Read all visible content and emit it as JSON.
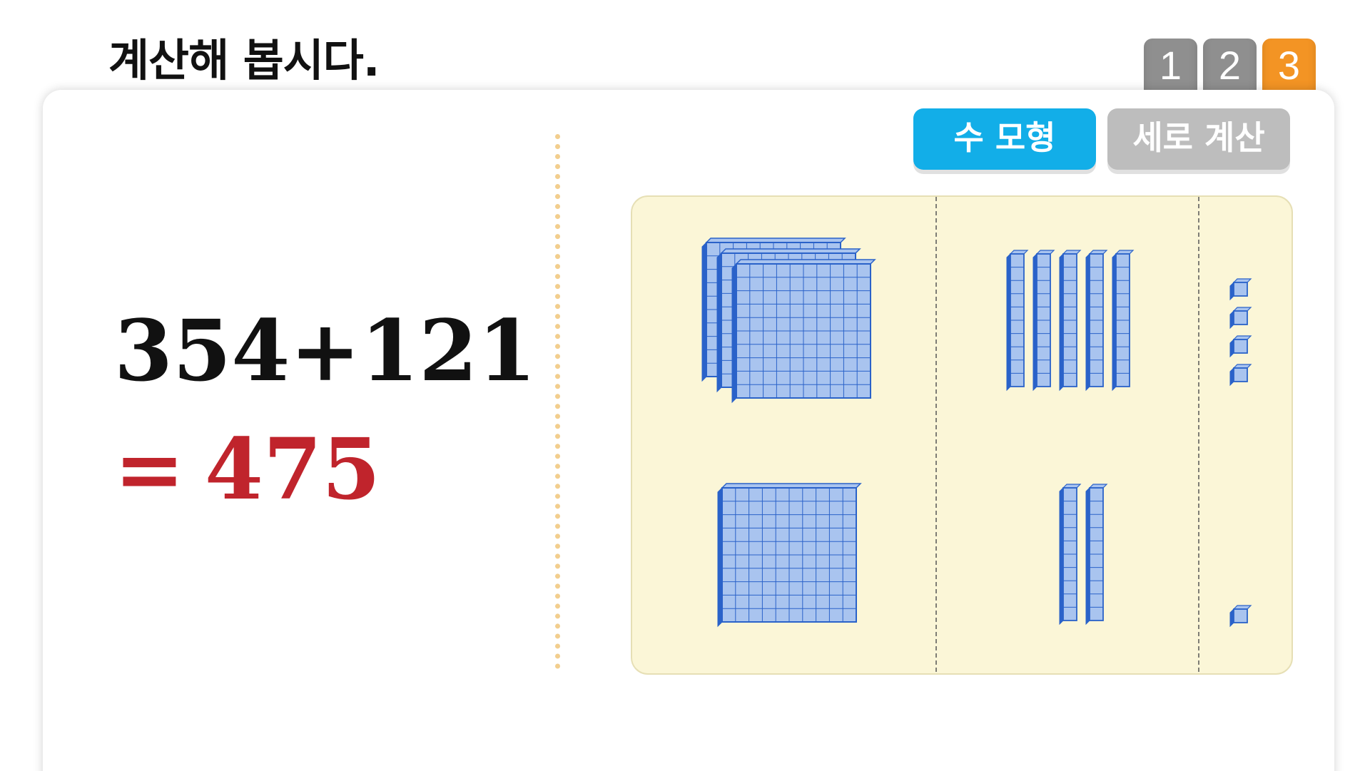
{
  "header": {
    "instruction": "계산해 봅시다."
  },
  "page_tabs": [
    {
      "label": "1",
      "active": false
    },
    {
      "label": "2",
      "active": false
    },
    {
      "label": "3",
      "active": true
    }
  ],
  "view_buttons": {
    "model_label": "수 모형",
    "vertical_label": "세로 계산"
  },
  "equation": {
    "expression": "354+121",
    "equals": "=",
    "answer": "475"
  },
  "base_ten_model": {
    "columns": [
      "hundreds",
      "tens",
      "ones"
    ],
    "addend_1": {
      "hundreds": 3,
      "tens": 5,
      "ones": 4
    },
    "addend_2": {
      "hundreds": 1,
      "tens": 2,
      "ones": 1
    }
  },
  "colors": {
    "accent_blue": "#12aee8",
    "tab_active": "#f39424",
    "tab_inactive": "#8f8f8f",
    "answer_red": "#c0242c",
    "block_face": "#a9c4ef",
    "block_edge": "#2a62c9",
    "board_bg": "#fbf6d7"
  }
}
